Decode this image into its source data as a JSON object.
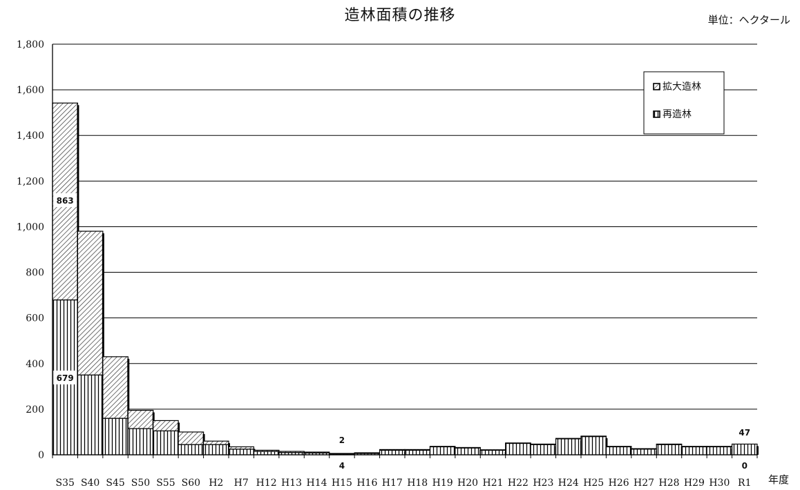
{
  "chart_data": {
    "type": "bar",
    "stacked": true,
    "title": "造林面積の推移",
    "unit": "単位：ヘクタール",
    "xlabel": "年度",
    "ylabel": "",
    "ylim": [
      0,
      1800
    ],
    "yticks": [
      0,
      200,
      400,
      600,
      800,
      "1,000",
      "1,200",
      "1,400",
      "1,600",
      "1,800"
    ],
    "grid": true,
    "legend_position": "top-right",
    "categories": [
      "S35",
      "S40",
      "S45",
      "S50",
      "S55",
      "S60",
      "H2",
      "H7",
      "H12",
      "H13",
      "H14",
      "H15",
      "H16",
      "H17",
      "H18",
      "H19",
      "H20",
      "H21",
      "H22",
      "H23",
      "H24",
      "H25",
      "H26",
      "H27",
      "H28",
      "H29",
      "H30",
      "R1"
    ],
    "series": [
      {
        "name": "再造林",
        "pattern": "vertical-lines",
        "values": [
          679,
          350,
          160,
          115,
          105,
          45,
          45,
          25,
          15,
          10,
          8,
          4,
          6,
          20,
          20,
          35,
          30,
          20,
          50,
          45,
          70,
          80,
          35,
          25,
          45,
          35,
          35,
          47
        ]
      },
      {
        "name": "拡大造林",
        "pattern": "diagonal-hatch",
        "values": [
          863,
          630,
          270,
          80,
          45,
          55,
          15,
          10,
          5,
          5,
          4,
          2,
          3,
          3,
          3,
          2,
          2,
          2,
          2,
          2,
          2,
          2,
          2,
          2,
          2,
          2,
          2,
          0
        ]
      }
    ],
    "data_labels": [
      {
        "category": "S35",
        "series": "拡大造林",
        "text": "863"
      },
      {
        "category": "S35",
        "series": "再造林",
        "text": "679"
      },
      {
        "category": "H15",
        "series": "拡大造林",
        "text": "2"
      },
      {
        "category": "H15",
        "series": "再造林",
        "text": "4"
      },
      {
        "category": "R1",
        "series": "再造林",
        "text": "47"
      },
      {
        "category": "R1",
        "series": "拡大造林",
        "text": "0"
      }
    ]
  }
}
